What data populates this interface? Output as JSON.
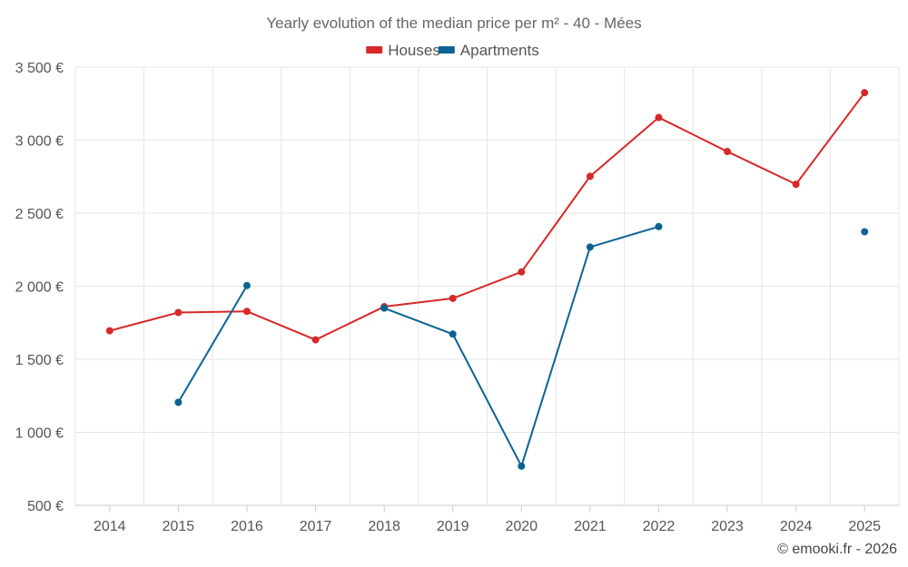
{
  "chart_data": {
    "type": "line",
    "title": "Yearly evolution of the median price per m² - 40 - Mées",
    "categories": [
      "2014",
      "2015",
      "2016",
      "2017",
      "2018",
      "2019",
      "2020",
      "2021",
      "2022",
      "2023",
      "2024",
      "2025"
    ],
    "series": [
      {
        "name": "Houses",
        "color": "#d62828",
        "values": [
          1695,
          1820,
          1828,
          1633,
          1860,
          1917,
          2098,
          2752,
          3155,
          2922,
          2698,
          3325
        ]
      },
      {
        "name": "Apartments",
        "color": "#0b6394",
        "values": [
          null,
          1205,
          2005,
          null,
          1850,
          1672,
          768,
          2268,
          2408,
          null,
          null,
          2373
        ]
      }
    ],
    "ylim": [
      500,
      3500
    ],
    "yticks": [
      500,
      1000,
      1500,
      2000,
      2500,
      3000,
      3500
    ],
    "ytick_labels": [
      "500 €",
      "1 000 €",
      "1 500 €",
      "2 000 €",
      "2 500 €",
      "3 000 €",
      "3 500 €"
    ],
    "xlabel": "",
    "ylabel": "",
    "grid": true,
    "legend_position": "top-center"
  },
  "credit": "© emooki.fr - 2026"
}
